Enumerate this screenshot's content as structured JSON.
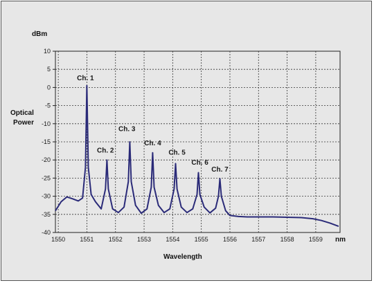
{
  "chart_data": {
    "type": "line",
    "title": "",
    "ylabel_lines": [
      "Optical",
      "Power"
    ],
    "y_unit": "dBm",
    "xlabel": "Wavelength",
    "x_unit": "nm",
    "xlim": [
      1549.9,
      1559.85
    ],
    "ylim": [
      -40,
      10
    ],
    "x_ticks": [
      1550,
      1551,
      1552,
      1553,
      1554,
      1555,
      1556,
      1557,
      1558,
      1559
    ],
    "y_ticks": [
      10,
      5,
      0,
      -5,
      -10,
      -15,
      -20,
      -25,
      -30,
      -35,
      -40
    ],
    "grid": true,
    "line_color": "#2a2a78",
    "background_color": "#e7e7e7",
    "series": [
      {
        "x": [
          1549.9,
          1550.1,
          1550.3,
          1550.5,
          1550.7,
          1550.85,
          1550.95,
          1551.0,
          1551.05,
          1551.15,
          1551.3,
          1551.5,
          1551.65,
          1551.7,
          1551.75,
          1551.9,
          1552.1,
          1552.3,
          1552.45,
          1552.5,
          1552.55,
          1552.7,
          1552.9,
          1553.1,
          1553.25,
          1553.3,
          1553.35,
          1553.5,
          1553.7,
          1553.9,
          1554.05,
          1554.1,
          1554.15,
          1554.3,
          1554.5,
          1554.7,
          1554.85,
          1554.9,
          1554.95,
          1555.1,
          1555.3,
          1555.5,
          1555.6,
          1555.65,
          1555.7,
          1555.85,
          1556.0,
          1556.3,
          1556.6,
          1557.0,
          1557.5,
          1558.0,
          1558.5,
          1558.9,
          1559.2,
          1559.5,
          1559.8
        ],
        "y": [
          -34,
          -31.5,
          -30.2,
          -30.7,
          -31.3,
          -30.5,
          -22,
          0.5,
          -22,
          -29.5,
          -31.5,
          -33.5,
          -28,
          -20,
          -28,
          -33.5,
          -34.5,
          -33,
          -26,
          -15,
          -26,
          -32.5,
          -34.7,
          -33.5,
          -27.5,
          -18,
          -27.5,
          -32.5,
          -34.5,
          -33.5,
          -28,
          -21,
          -28,
          -33,
          -34.5,
          -33.5,
          -29.5,
          -23.5,
          -29.5,
          -33,
          -34.6,
          -33.3,
          -30,
          -25.2,
          -30,
          -34,
          -35.3,
          -35.6,
          -35.7,
          -35.7,
          -35.7,
          -35.8,
          -35.9,
          -36.2,
          -36.7,
          -37.4,
          -38.3
        ]
      }
    ],
    "annotations": [
      {
        "text": "Ch. 1",
        "x": 1550.95,
        "y": 2.0
      },
      {
        "text": "Ch. 2",
        "x": 1551.65,
        "y": -18.0
      },
      {
        "text": "Ch. 3",
        "x": 1552.4,
        "y": -12.0
      },
      {
        "text": "Ch. 4",
        "x": 1553.3,
        "y": -16.0
      },
      {
        "text": "Ch. 5",
        "x": 1554.15,
        "y": -18.5
      },
      {
        "text": "Ch. 6",
        "x": 1554.95,
        "y": -21.3
      },
      {
        "text": "Ch. 7",
        "x": 1555.65,
        "y": -23.2
      }
    ]
  }
}
